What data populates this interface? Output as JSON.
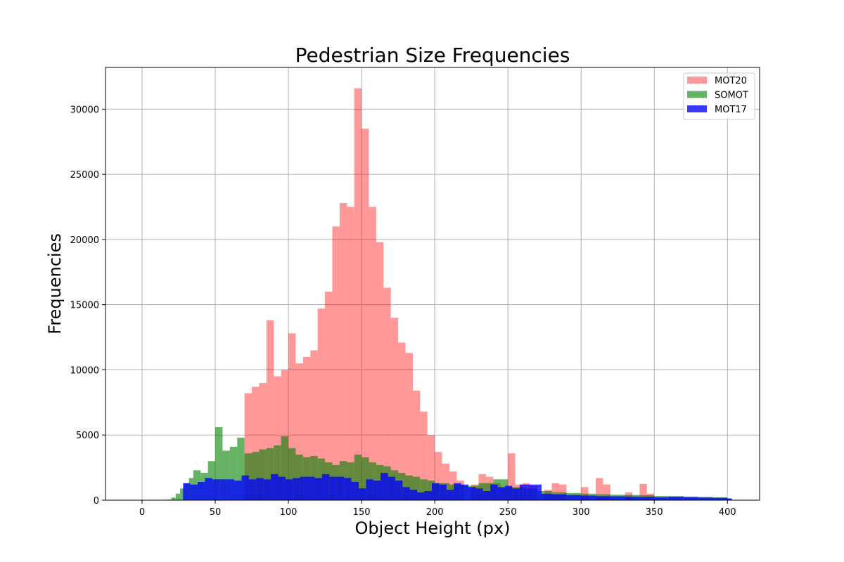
{
  "chart_data": {
    "type": "bar",
    "histogram": true,
    "title": "Pedestrian Size Frequencies",
    "xlabel": "Object Height (px)",
    "ylabel": "Frequencies",
    "xlim": [
      -25,
      422
    ],
    "ylim": [
      0,
      33200
    ],
    "xticks": [
      0,
      50,
      100,
      150,
      200,
      250,
      300,
      350,
      400
    ],
    "xtick_labels": [
      "0",
      "50",
      "100",
      "150",
      "200",
      "250",
      "300",
      "350",
      "400"
    ],
    "yticks": [
      0,
      5000,
      10000,
      15000,
      20000,
      25000,
      30000
    ],
    "ytick_labels": [
      "0",
      "5000",
      "10000",
      "15000",
      "20000",
      "25000",
      "30000"
    ],
    "grid": true,
    "legend_position": "top-right",
    "legend_labels": [
      "MOT20",
      "SOMOT",
      "MOT17"
    ],
    "series": [
      {
        "name": "MOT20",
        "color": "#ff0000",
        "opacity": 0.4,
        "bins": [
          [
            70,
            75,
            8200
          ],
          [
            75,
            80,
            8700
          ],
          [
            80,
            85,
            9000
          ],
          [
            85,
            90,
            13800
          ],
          [
            90,
            95,
            9500
          ],
          [
            95,
            100,
            10000
          ],
          [
            100,
            105,
            12800
          ],
          [
            105,
            110,
            10500
          ],
          [
            110,
            115,
            11000
          ],
          [
            115,
            120,
            11500
          ],
          [
            120,
            125,
            14700
          ],
          [
            125,
            130,
            16000
          ],
          [
            130,
            135,
            21000
          ],
          [
            135,
            140,
            22800
          ],
          [
            140,
            145,
            22500
          ],
          [
            145,
            150,
            31600
          ],
          [
            150,
            155,
            28500
          ],
          [
            155,
            160,
            22500
          ],
          [
            160,
            165,
            19800
          ],
          [
            165,
            170,
            16300
          ],
          [
            170,
            175,
            14000
          ],
          [
            175,
            180,
            12100
          ],
          [
            180,
            185,
            11300
          ],
          [
            185,
            190,
            8400
          ],
          [
            190,
            195,
            6800
          ],
          [
            195,
            200,
            5000
          ],
          [
            200,
            205,
            3700
          ],
          [
            205,
            210,
            2800
          ],
          [
            210,
            215,
            2200
          ],
          [
            215,
            220,
            1500
          ],
          [
            225,
            230,
            1200
          ],
          [
            230,
            235,
            2000
          ],
          [
            235,
            240,
            1800
          ],
          [
            240,
            245,
            1300
          ],
          [
            245,
            250,
            900
          ],
          [
            250,
            255,
            3600
          ],
          [
            255,
            260,
            1200
          ],
          [
            260,
            265,
            1300
          ],
          [
            265,
            270,
            1100
          ],
          [
            275,
            280,
            800
          ],
          [
            280,
            285,
            1300
          ],
          [
            285,
            290,
            1200
          ],
          [
            300,
            305,
            1000
          ],
          [
            310,
            315,
            1700
          ],
          [
            315,
            320,
            1200
          ],
          [
            330,
            335,
            600
          ],
          [
            340,
            345,
            1250
          ],
          [
            345,
            350,
            500
          ]
        ]
      },
      {
        "name": "SOMOT",
        "color": "#008000",
        "opacity": 0.6,
        "bins": [
          [
            17,
            20,
            50
          ],
          [
            20,
            23,
            200
          ],
          [
            23,
            26,
            500
          ],
          [
            26,
            29,
            900
          ],
          [
            29,
            32,
            1300
          ],
          [
            32,
            35,
            1700
          ],
          [
            35,
            40,
            2300
          ],
          [
            40,
            45,
            2100
          ],
          [
            45,
            50,
            3000
          ],
          [
            50,
            55,
            5600
          ],
          [
            55,
            60,
            3800
          ],
          [
            60,
            65,
            4100
          ],
          [
            65,
            70,
            4800
          ],
          [
            70,
            75,
            3600
          ],
          [
            75,
            80,
            3700
          ],
          [
            80,
            85,
            3900
          ],
          [
            85,
            90,
            4000
          ],
          [
            90,
            95,
            4200
          ],
          [
            95,
            100,
            4900
          ],
          [
            100,
            105,
            4000
          ],
          [
            105,
            110,
            3500
          ],
          [
            110,
            115,
            3300
          ],
          [
            115,
            120,
            3400
          ],
          [
            120,
            125,
            3200
          ],
          [
            125,
            130,
            2900
          ],
          [
            130,
            135,
            2700
          ],
          [
            135,
            140,
            3000
          ],
          [
            140,
            145,
            2900
          ],
          [
            145,
            150,
            3500
          ],
          [
            150,
            155,
            3300
          ],
          [
            155,
            160,
            2900
          ],
          [
            160,
            165,
            2700
          ],
          [
            165,
            170,
            2600
          ],
          [
            170,
            175,
            2300
          ],
          [
            175,
            180,
            2100
          ],
          [
            180,
            185,
            1900
          ],
          [
            185,
            190,
            1800
          ],
          [
            190,
            195,
            1600
          ],
          [
            195,
            200,
            1500
          ],
          [
            200,
            210,
            1300
          ],
          [
            210,
            220,
            1200
          ],
          [
            220,
            230,
            1100
          ],
          [
            230,
            240,
            1300
          ],
          [
            240,
            250,
            1600
          ],
          [
            250,
            260,
            1000
          ],
          [
            260,
            270,
            900
          ],
          [
            270,
            280,
            700
          ],
          [
            280,
            290,
            600
          ],
          [
            290,
            300,
            550
          ],
          [
            300,
            310,
            500
          ],
          [
            310,
            320,
            450
          ],
          [
            320,
            330,
            420
          ],
          [
            330,
            340,
            400
          ],
          [
            340,
            350,
            380
          ],
          [
            350,
            360,
            320
          ],
          [
            360,
            370,
            300
          ],
          [
            370,
            380,
            280
          ],
          [
            380,
            390,
            250
          ],
          [
            390,
            400,
            220
          ],
          [
            400,
            403,
            150
          ]
        ]
      },
      {
        "name": "MOT17",
        "color": "#0000ff",
        "opacity": 0.78,
        "bins": [
          [
            28,
            33,
            1300
          ],
          [
            33,
            38,
            1200
          ],
          [
            38,
            43,
            1400
          ],
          [
            43,
            48,
            1700
          ],
          [
            48,
            53,
            1600
          ],
          [
            53,
            58,
            1600
          ],
          [
            58,
            63,
            1600
          ],
          [
            63,
            68,
            1500
          ],
          [
            68,
            73,
            1900
          ],
          [
            73,
            78,
            1600
          ],
          [
            78,
            83,
            1700
          ],
          [
            83,
            88,
            1600
          ],
          [
            88,
            93,
            2000
          ],
          [
            93,
            98,
            1800
          ],
          [
            98,
            103,
            1600
          ],
          [
            103,
            108,
            1700
          ],
          [
            108,
            113,
            1800
          ],
          [
            113,
            118,
            1800
          ],
          [
            118,
            123,
            1700
          ],
          [
            123,
            128,
            2000
          ],
          [
            128,
            133,
            1800
          ],
          [
            133,
            138,
            1800
          ],
          [
            138,
            143,
            1700
          ],
          [
            143,
            148,
            1400
          ],
          [
            148,
            153,
            900
          ],
          [
            153,
            158,
            1600
          ],
          [
            158,
            163,
            1500
          ],
          [
            163,
            168,
            2100
          ],
          [
            168,
            173,
            1800
          ],
          [
            173,
            178,
            1500
          ],
          [
            178,
            183,
            1000
          ],
          [
            183,
            188,
            800
          ],
          [
            188,
            193,
            600
          ],
          [
            193,
            198,
            700
          ],
          [
            198,
            203,
            1300
          ],
          [
            203,
            208,
            1200
          ],
          [
            208,
            213,
            800
          ],
          [
            213,
            218,
            1300
          ],
          [
            218,
            223,
            1200
          ],
          [
            223,
            228,
            1000
          ],
          [
            228,
            233,
            900
          ],
          [
            233,
            238,
            700
          ],
          [
            238,
            243,
            1200
          ],
          [
            243,
            248,
            1000
          ],
          [
            248,
            253,
            1100
          ],
          [
            253,
            258,
            900
          ],
          [
            258,
            263,
            1200
          ],
          [
            263,
            268,
            1200
          ],
          [
            268,
            273,
            1200
          ],
          [
            273,
            280,
            500
          ],
          [
            280,
            290,
            450
          ],
          [
            290,
            300,
            400
          ],
          [
            300,
            310,
            350
          ],
          [
            310,
            320,
            300
          ],
          [
            320,
            330,
            300
          ],
          [
            330,
            340,
            280
          ],
          [
            340,
            350,
            250
          ],
          [
            350,
            360,
            220
          ],
          [
            360,
            370,
            280
          ],
          [
            370,
            380,
            220
          ],
          [
            380,
            390,
            200
          ],
          [
            390,
            400,
            180
          ],
          [
            400,
            403,
            120
          ]
        ]
      }
    ]
  }
}
